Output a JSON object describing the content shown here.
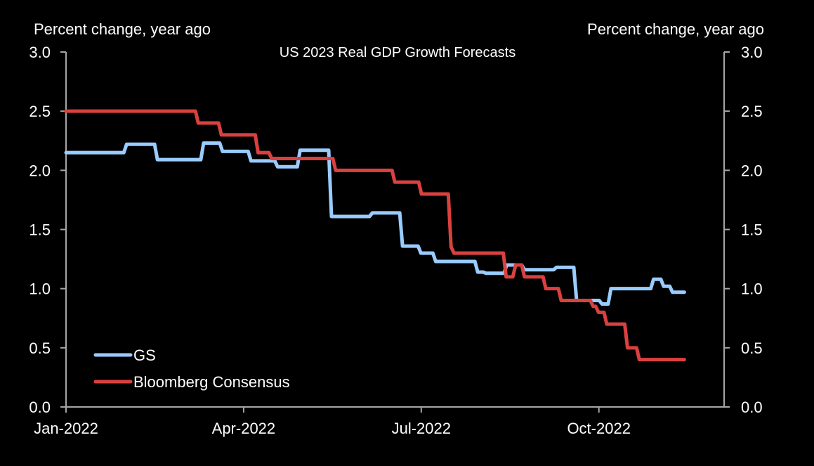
{
  "chart_data": {
    "type": "line",
    "title": "US 2023 Real GDP Growth Forecasts",
    "ylabel_left": "Percent change, year ago",
    "ylabel_right": "Percent change, year ago",
    "xlabel": "",
    "ylim": [
      0,
      3.0
    ],
    "yticks": [
      "0.0",
      "0.5",
      "1.0",
      "1.5",
      "2.0",
      "2.5",
      "3.0"
    ],
    "ytick_values": [
      0,
      0.5,
      1.0,
      1.5,
      2.0,
      2.5,
      3.0
    ],
    "xlim_months_from_jan2022": [
      0,
      11.1
    ],
    "xticks": [
      "Jan-2022",
      "Apr-2022",
      "Jul-2022",
      "Oct-2022"
    ],
    "xtick_months": [
      0,
      3,
      6,
      9
    ],
    "grid": false,
    "legend_position": "bottom-left",
    "x_unit": "months since 1 Jan 2022",
    "series": [
      {
        "name": "GS",
        "color": "#99ccff",
        "step_points": [
          [
            0.0,
            2.15
          ],
          [
            1.0,
            2.22
          ],
          [
            1.52,
            2.09
          ],
          [
            2.3,
            2.23
          ],
          [
            2.62,
            2.16
          ],
          [
            3.1,
            2.08
          ],
          [
            3.55,
            2.03
          ],
          [
            3.93,
            2.17
          ],
          [
            4.46,
            1.61
          ],
          [
            5.15,
            1.64
          ],
          [
            5.66,
            1.36
          ],
          [
            5.97,
            1.3
          ],
          [
            6.22,
            1.23
          ],
          [
            6.93,
            1.14
          ],
          [
            7.07,
            1.13
          ],
          [
            7.42,
            1.2
          ],
          [
            7.72,
            1.16
          ],
          [
            8.26,
            1.18
          ],
          [
            8.6,
            0.9
          ],
          [
            9.03,
            0.87
          ],
          [
            9.18,
            1.0
          ],
          [
            9.9,
            1.08
          ],
          [
            10.07,
            1.02
          ],
          [
            10.22,
            0.97
          ],
          [
            10.42,
            0.97
          ]
        ]
      },
      {
        "name": "Bloomberg Consensus",
        "color": "#d9413f",
        "step_points": [
          [
            0.0,
            2.5
          ],
          [
            2.21,
            2.4
          ],
          [
            2.6,
            2.3
          ],
          [
            3.22,
            2.15
          ],
          [
            3.45,
            2.1
          ],
          [
            4.53,
            2.0
          ],
          [
            5.53,
            1.9
          ],
          [
            5.98,
            1.8
          ],
          [
            6.48,
            1.35
          ],
          [
            6.53,
            1.3
          ],
          [
            7.41,
            1.1
          ],
          [
            7.57,
            1.2
          ],
          [
            7.72,
            1.1
          ],
          [
            8.08,
            1.0
          ],
          [
            8.34,
            0.9
          ],
          [
            8.88,
            0.85
          ],
          [
            8.97,
            0.8
          ],
          [
            9.11,
            0.7
          ],
          [
            9.46,
            0.5
          ],
          [
            9.66,
            0.4
          ],
          [
            10.42,
            0.4
          ]
        ]
      }
    ]
  }
}
